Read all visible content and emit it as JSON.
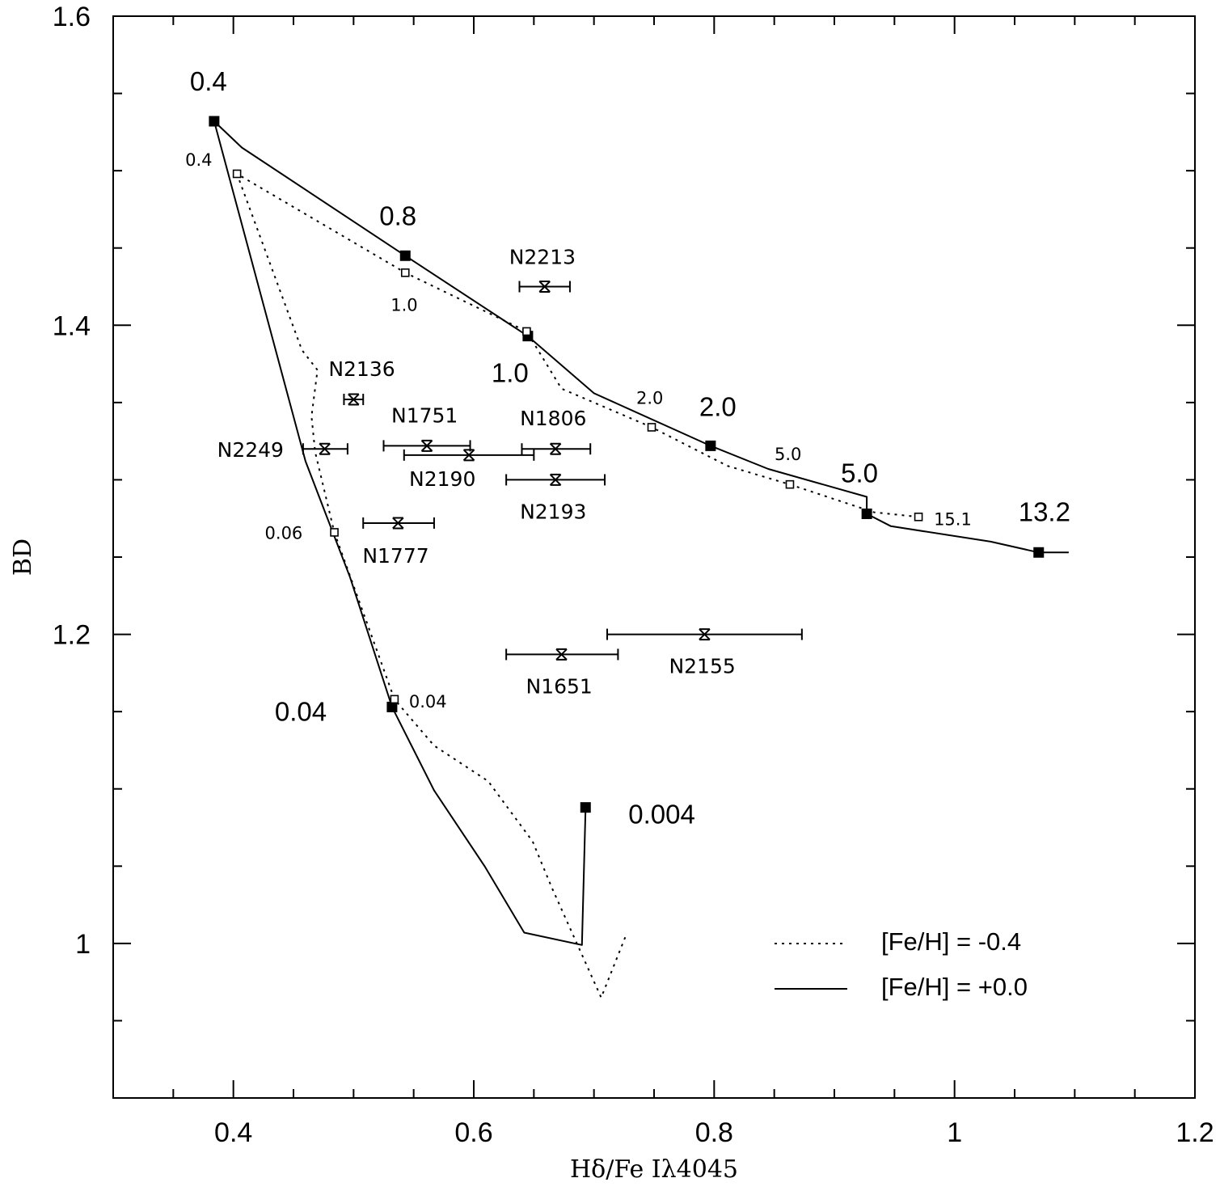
{
  "chart_data": {
    "type": "line",
    "xlabel": "Hδ/Fe Iλ4045",
    "ylabel": "BD",
    "xlim": [
      0.3,
      1.2
    ],
    "ylim": [
      0.9,
      1.6
    ],
    "x_ticks": [
      0.4,
      0.6,
      0.8,
      1,
      1.2
    ],
    "x_tick_labels": [
      "0.4",
      "0.6",
      "0.8",
      "1",
      "1.2"
    ],
    "y_ticks": [
      1,
      1.2,
      1.4,
      1.6
    ],
    "y_tick_labels": [
      "1",
      "1.2",
      "1.4",
      "1.6"
    ],
    "x_minor_step": 0.05,
    "y_minor_step": 0.05,
    "grid": false,
    "series": [
      {
        "name": "[Fe/H] = -0.4",
        "style": "dotted",
        "x": [
          0.726,
          0.706,
          0.665,
          0.649,
          0.612,
          0.567,
          0.534,
          0.534,
          0.484,
          0.468,
          0.465,
          0.47,
          0.457,
          0.403,
          0.403,
          0.543,
          0.543,
          0.644,
          0.644,
          0.673,
          0.748,
          0.748,
          0.811,
          0.863,
          0.863,
          0.933,
          0.97,
          0.97
        ],
        "y": [
          1.004,
          0.965,
          1.036,
          1.066,
          1.105,
          1.128,
          1.158,
          1.158,
          1.266,
          1.318,
          1.341,
          1.371,
          1.384,
          1.498,
          1.498,
          1.434,
          1.434,
          1.396,
          1.396,
          1.359,
          1.334,
          1.334,
          1.309,
          1.297,
          1.297,
          1.279,
          1.276,
          1.276
        ]
      },
      {
        "name": "[Fe/H] = +0.0",
        "style": "solid",
        "x": [
          0.693,
          0.69,
          0.642,
          0.609,
          0.567,
          0.532,
          0.532,
          0.497,
          0.46,
          0.384,
          0.384,
          0.407,
          0.543,
          0.543,
          0.645,
          0.645,
          0.7,
          0.797,
          0.797,
          0.845,
          0.927,
          0.927,
          0.927,
          0.947,
          1.03,
          1.07,
          1.095
        ],
        "y": [
          1.088,
          0.999,
          1.007,
          1.05,
          1.099,
          1.153,
          1.153,
          1.237,
          1.312,
          1.532,
          1.532,
          1.515,
          1.445,
          1.445,
          1.393,
          1.393,
          1.356,
          1.322,
          1.322,
          1.307,
          1.289,
          1.289,
          1.278,
          1.27,
          1.26,
          1.253,
          1.253
        ]
      }
    ],
    "markers": [
      {
        "series": "[Fe/H] = +0.0",
        "symbol": "filled-square",
        "x": 0.384,
        "y": 1.532,
        "label": "0.4",
        "label_size": "large",
        "label_dx": -30,
        "label_dy": -38
      },
      {
        "series": "[Fe/H] = +0.0",
        "symbol": "filled-square",
        "x": 0.543,
        "y": 1.445,
        "label": "0.8",
        "label_size": "large",
        "label_dx": -32,
        "label_dy": -38
      },
      {
        "series": "[Fe/H] = +0.0",
        "symbol": "filled-square",
        "x": 0.645,
        "y": 1.393,
        "label": "1.0",
        "label_size": "large",
        "label_dx": -45,
        "label_dy": 57
      },
      {
        "series": "[Fe/H] = +0.0",
        "symbol": "filled-square",
        "x": 0.797,
        "y": 1.322,
        "label": "2.0",
        "label_size": "large",
        "label_dx": -14,
        "label_dy": -37
      },
      {
        "series": "[Fe/H] = +0.0",
        "symbol": "filled-square",
        "x": 0.927,
        "y": 1.278,
        "label": "5.0",
        "label_size": "large",
        "label_dx": -32,
        "label_dy": -39
      },
      {
        "series": "[Fe/H] = +0.0",
        "symbol": "filled-square",
        "x": 1.07,
        "y": 1.253,
        "label": "13.2",
        "label_size": "large",
        "label_dx": -25,
        "label_dy": -39
      },
      {
        "series": "[Fe/H] = +0.0",
        "symbol": "filled-square",
        "x": 0.532,
        "y": 1.153,
        "label": "0.04",
        "label_size": "large",
        "label_dx": -145,
        "label_dy": 17
      },
      {
        "series": "[Fe/H] = +0.0",
        "symbol": "filled-square",
        "x": 0.693,
        "y": 1.088,
        "label": "0.004",
        "label_size": "large",
        "label_dx": 53,
        "label_dy": 20
      },
      {
        "series": "[Fe/H] = -0.4",
        "symbol": "open-square",
        "x": 0.403,
        "y": 1.498,
        "label": "0.4",
        "label_size": "small",
        "label_dx": -64,
        "label_dy": -10
      },
      {
        "series": "[Fe/H] = -0.4",
        "symbol": "open-square",
        "x": 0.543,
        "y": 1.434,
        "label": "1.0",
        "label_size": "small",
        "label_dx": -18,
        "label_dy": 47
      },
      {
        "series": "[Fe/H] = -0.4",
        "symbol": "open-square",
        "x": 0.644,
        "y": 1.396,
        "label": "",
        "label_size": "small",
        "label_dx": 0,
        "label_dy": 0
      },
      {
        "series": "[Fe/H] = -0.4",
        "symbol": "open-square",
        "x": 0.748,
        "y": 1.334,
        "label": "2.0",
        "label_size": "small",
        "label_dx": -19,
        "label_dy": -29
      },
      {
        "series": "[Fe/H] = -0.4",
        "symbol": "open-square",
        "x": 0.863,
        "y": 1.297,
        "label": "5.0",
        "label_size": "small",
        "label_dx": -19,
        "label_dy": -30
      },
      {
        "series": "[Fe/H] = -0.4",
        "symbol": "open-square",
        "x": 0.97,
        "y": 1.276,
        "label": "15.1",
        "label_size": "small",
        "label_dx": 19,
        "label_dy": 10
      },
      {
        "series": "[Fe/H] = -0.4",
        "symbol": "open-square",
        "x": 0.484,
        "y": 1.266,
        "label": "0.06",
        "label_size": "small",
        "label_dx": -86,
        "label_dy": 8
      },
      {
        "series": "[Fe/H] = -0.4",
        "symbol": "open-square",
        "x": 0.534,
        "y": 1.158,
        "label": "0.04",
        "label_size": "small",
        "label_dx": 18,
        "label_dy": 10
      }
    ],
    "clusters": [
      {
        "name": "N2213",
        "x": 0.659,
        "y": 1.425,
        "xerr_low": 0.638,
        "xerr_high": 0.68,
        "label_dx": -44,
        "label_dy": -28
      },
      {
        "name": "N2136",
        "x": 0.5,
        "y": 1.352,
        "xerr_low": 0.492,
        "xerr_high": 0.508,
        "label_dx": -31,
        "label_dy": -29
      },
      {
        "name": "N1751",
        "x": 0.561,
        "y": 1.322,
        "xerr_low": 0.525,
        "xerr_high": 0.597,
        "label_dx": -44,
        "label_dy": -29
      },
      {
        "name": "N1806",
        "x": 0.668,
        "y": 1.32,
        "xerr_low": 0.64,
        "xerr_high": 0.697,
        "label_dx": -44,
        "label_dy": -29
      },
      {
        "name": "N2249",
        "x": 0.476,
        "y": 1.32,
        "xerr_low": 0.458,
        "xerr_high": 0.495,
        "label_dx": -133,
        "label_dy": 10
      },
      {
        "name": "N2190",
        "x": 0.596,
        "y": 1.316,
        "xerr_low": 0.542,
        "xerr_high": 0.65,
        "label_dx": -74,
        "label_dy": 38
      },
      {
        "name": "N2193",
        "x": 0.668,
        "y": 1.3,
        "xerr_low": 0.627,
        "xerr_high": 0.709,
        "label_dx": -44,
        "label_dy": 48
      },
      {
        "name": "N1777",
        "x": 0.537,
        "y": 1.272,
        "xerr_low": 0.508,
        "xerr_high": 0.567,
        "label_dx": -44,
        "label_dy": 49
      },
      {
        "name": "N2155",
        "x": 0.792,
        "y": 1.2,
        "xerr_low": 0.711,
        "xerr_high": 0.873,
        "label_dx": -44,
        "label_dy": 48
      },
      {
        "name": "N1651",
        "x": 0.673,
        "y": 1.187,
        "xerr_low": 0.627,
        "xerr_high": 0.72,
        "label_dx": -44,
        "label_dy": 48
      }
    ],
    "legend": {
      "position": "bottom-right",
      "entries": [
        {
          "label": "[Fe/H] = -0.4",
          "style": "dotted"
        },
        {
          "label": "[Fe/H] = +0.0",
          "style": "solid"
        }
      ]
    }
  }
}
